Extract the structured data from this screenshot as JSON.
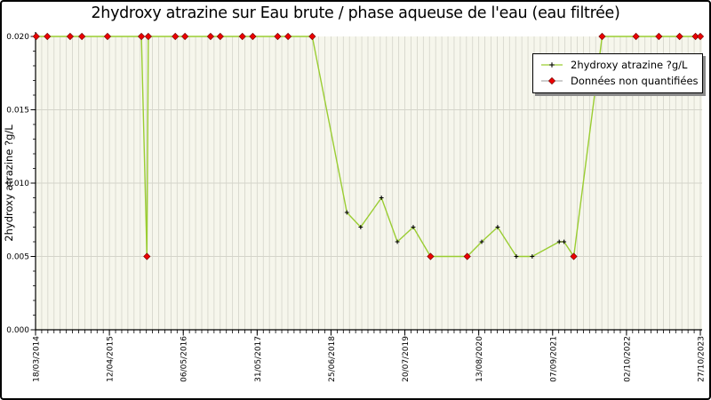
{
  "chart_data": {
    "type": "line",
    "title": "2hydroxy atrazine sur Eau brute / phase aqueuse de l'eau (eau filtrée)",
    "ylabel": "2hydroxy atrazine ?g/L",
    "xlabel": "",
    "ylim": [
      0,
      0.02
    ],
    "xlim_years": [
      2014.21,
      2023.82
    ],
    "grid": true,
    "legend_position": "upper-right",
    "y_ticks": [
      {
        "label": "0.000",
        "value": 0
      },
      {
        "label": "0.005",
        "value": 0.005
      },
      {
        "label": "0.010",
        "value": 0.01
      },
      {
        "label": "0.015",
        "value": 0.015
      },
      {
        "label": "0.020",
        "value": 0.02
      }
    ],
    "y_minor_step": 0.001,
    "x_ticks": [
      "18/03/2014",
      "12/04/2015",
      "06/05/2016",
      "31/05/2017",
      "25/06/2018",
      "20/07/2019",
      "13/08/2020",
      "07/09/2021",
      "02/10/2022",
      "27/10/2023"
    ],
    "x_minor_divisions_per_interval": 12,
    "legend_items": [
      {
        "label": "2hydroxy atrazine ?g/L",
        "marker": "plus-on-green-line"
      },
      {
        "label": "Données non quantifiées",
        "marker": "red-diamond-on-gray-line"
      }
    ],
    "series": [
      {
        "name": "2hydroxy atrazine ?g/L",
        "unit": "?g/L",
        "points": [
          {
            "t": 2014.22,
            "v": 0.02,
            "quantified": false
          },
          {
            "t": 2014.38,
            "v": 0.02,
            "quantified": false
          },
          {
            "t": 2014.71,
            "v": 0.02,
            "quantified": false
          },
          {
            "t": 2014.88,
            "v": 0.02,
            "quantified": false
          },
          {
            "t": 2015.25,
            "v": 0.02,
            "quantified": false
          },
          {
            "t": 2015.74,
            "v": 0.02,
            "quantified": false
          },
          {
            "t": 2015.82,
            "v": 0.005,
            "quantified": false
          },
          {
            "t": 2015.84,
            "v": 0.02,
            "quantified": false
          },
          {
            "t": 2016.23,
            "v": 0.02,
            "quantified": false
          },
          {
            "t": 2016.37,
            "v": 0.02,
            "quantified": false
          },
          {
            "t": 2016.74,
            "v": 0.02,
            "quantified": false
          },
          {
            "t": 2016.88,
            "v": 0.02,
            "quantified": false
          },
          {
            "t": 2017.2,
            "v": 0.02,
            "quantified": false
          },
          {
            "t": 2017.35,
            "v": 0.02,
            "quantified": false
          },
          {
            "t": 2017.71,
            "v": 0.02,
            "quantified": false
          },
          {
            "t": 2017.86,
            "v": 0.02,
            "quantified": false
          },
          {
            "t": 2018.21,
            "v": 0.02,
            "quantified": false
          },
          {
            "t": 2018.71,
            "v": 0.008,
            "quantified": true
          },
          {
            "t": 2018.91,
            "v": 0.007,
            "quantified": true
          },
          {
            "t": 2019.21,
            "v": 0.009,
            "quantified": true
          },
          {
            "t": 2019.44,
            "v": 0.006,
            "quantified": true
          },
          {
            "t": 2019.67,
            "v": 0.007,
            "quantified": true
          },
          {
            "t": 2019.92,
            "v": 0.005,
            "quantified": false
          },
          {
            "t": 2020.45,
            "v": 0.005,
            "quantified": false
          },
          {
            "t": 2020.66,
            "v": 0.006,
            "quantified": true
          },
          {
            "t": 2020.89,
            "v": 0.007,
            "quantified": true
          },
          {
            "t": 2021.16,
            "v": 0.005,
            "quantified": true
          },
          {
            "t": 2021.39,
            "v": 0.005,
            "quantified": true
          },
          {
            "t": 2021.78,
            "v": 0.006,
            "quantified": true
          },
          {
            "t": 2021.85,
            "v": 0.006,
            "quantified": true
          },
          {
            "t": 2021.99,
            "v": 0.005,
            "quantified": false
          },
          {
            "t": 2022.4,
            "v": 0.02,
            "quantified": false
          },
          {
            "t": 2022.89,
            "v": 0.02,
            "quantified": false
          },
          {
            "t": 2023.22,
            "v": 0.02,
            "quantified": false
          },
          {
            "t": 2023.52,
            "v": 0.02,
            "quantified": false
          },
          {
            "t": 2023.75,
            "v": 0.02,
            "quantified": false
          },
          {
            "t": 2023.82,
            "v": 0.02,
            "quantified": false
          }
        ]
      }
    ]
  },
  "colors": {
    "series_line": "#9acd32",
    "quantified_marker": "#000000",
    "nonquantified_fill": "#ee0000",
    "nonquantified_edge": "#7a0000",
    "legend_nq_line": "#999999",
    "grid": "#d4d4ca",
    "plot_bg": "#f6f6ec",
    "axis": "#000000",
    "frame_border": "#000000",
    "legend_shadow": "#8a8a8a"
  }
}
